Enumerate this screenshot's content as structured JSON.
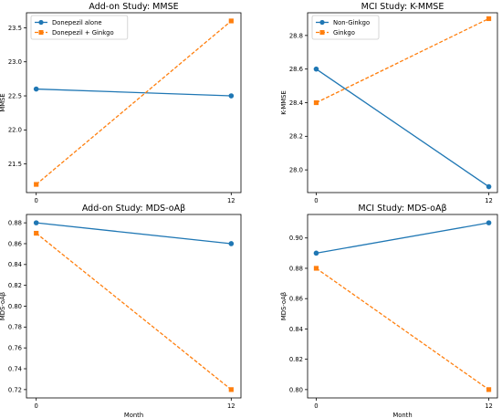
{
  "chart_data": [
    {
      "type": "line",
      "title": "Add-on Study: MMSE",
      "xlabel": "",
      "ylabel": "MMSE",
      "x": [
        0,
        12
      ],
      "xticks": [
        "0",
        "12"
      ],
      "xlim": [
        -0.6,
        12.6
      ],
      "ylim": [
        21.08,
        23.72
      ],
      "yticks": [
        21.5,
        22.0,
        22.5,
        23.0,
        23.5
      ],
      "ytick_labels": [
        "21.5",
        "22.0",
        "22.5",
        "23.0",
        "23.5"
      ],
      "legend": "top-left",
      "grid": false,
      "series": [
        {
          "name": "Donepezil alone",
          "values": [
            22.6,
            22.5
          ],
          "color": "#1f77b4",
          "style": "solid",
          "marker": "circle"
        },
        {
          "name": "Donepezil + Ginkgo",
          "values": [
            21.2,
            23.6
          ],
          "color": "#ff7f0e",
          "style": "dashed",
          "marker": "square"
        }
      ]
    },
    {
      "type": "line",
      "title": "MCI Study: K-MMSE",
      "xlabel": "",
      "ylabel": "K-MMSE",
      "x": [
        0,
        12
      ],
      "xticks": [
        "0",
        "12"
      ],
      "xlim": [
        -0.6,
        12.6
      ],
      "ylim": [
        27.865,
        28.935
      ],
      "yticks": [
        28.0,
        28.2,
        28.4,
        28.6,
        28.8
      ],
      "ytick_labels": [
        "28.0",
        "28.2",
        "28.4",
        "28.6",
        "28.8"
      ],
      "legend": "top-left",
      "grid": false,
      "series": [
        {
          "name": "Non-Ginkgo",
          "values": [
            28.6,
            27.9
          ],
          "color": "#1f77b4",
          "style": "solid",
          "marker": "circle"
        },
        {
          "name": "Ginkgo",
          "values": [
            28.4,
            28.9
          ],
          "color": "#ff7f0e",
          "style": "dashed",
          "marker": "square"
        }
      ]
    },
    {
      "type": "line",
      "title": "Add-on Study: MDS-oAβ",
      "xlabel": "Month",
      "ylabel": "MDS-oAβ",
      "x": [
        0,
        12
      ],
      "xticks": [
        "0",
        "12"
      ],
      "xlim": [
        -0.6,
        12.6
      ],
      "ylim": [
        0.712,
        0.888
      ],
      "yticks": [
        0.72,
        0.74,
        0.76,
        0.78,
        0.8,
        0.82,
        0.84,
        0.86,
        0.88
      ],
      "ytick_labels": [
        "0.72",
        "0.74",
        "0.76",
        "0.78",
        "0.80",
        "0.82",
        "0.84",
        "0.86",
        "0.88"
      ],
      "grid": false,
      "series": [
        {
          "values": [
            0.88,
            0.86
          ],
          "color": "#1f77b4",
          "style": "solid",
          "marker": "circle"
        },
        {
          "values": [
            0.87,
            0.72
          ],
          "color": "#ff7f0e",
          "style": "dashed",
          "marker": "square"
        }
      ]
    },
    {
      "type": "line",
      "title": "MCI Study: MDS-oAβ",
      "xlabel": "Month",
      "ylabel": "MDS-oAβ",
      "x": [
        0,
        12
      ],
      "xticks": [
        "0",
        "12"
      ],
      "xlim": [
        -0.6,
        12.6
      ],
      "ylim": [
        0.7945,
        0.9155
      ],
      "yticks": [
        0.8,
        0.82,
        0.84,
        0.86,
        0.88,
        0.9
      ],
      "ytick_labels": [
        "0.80",
        "0.82",
        "0.84",
        "0.86",
        "0.88",
        "0.90"
      ],
      "grid": false,
      "series": [
        {
          "values": [
            0.89,
            0.91
          ],
          "color": "#1f77b4",
          "style": "solid",
          "marker": "circle"
        },
        {
          "values": [
            0.88,
            0.8
          ],
          "color": "#ff7f0e",
          "style": "dashed",
          "marker": "square"
        }
      ]
    }
  ]
}
